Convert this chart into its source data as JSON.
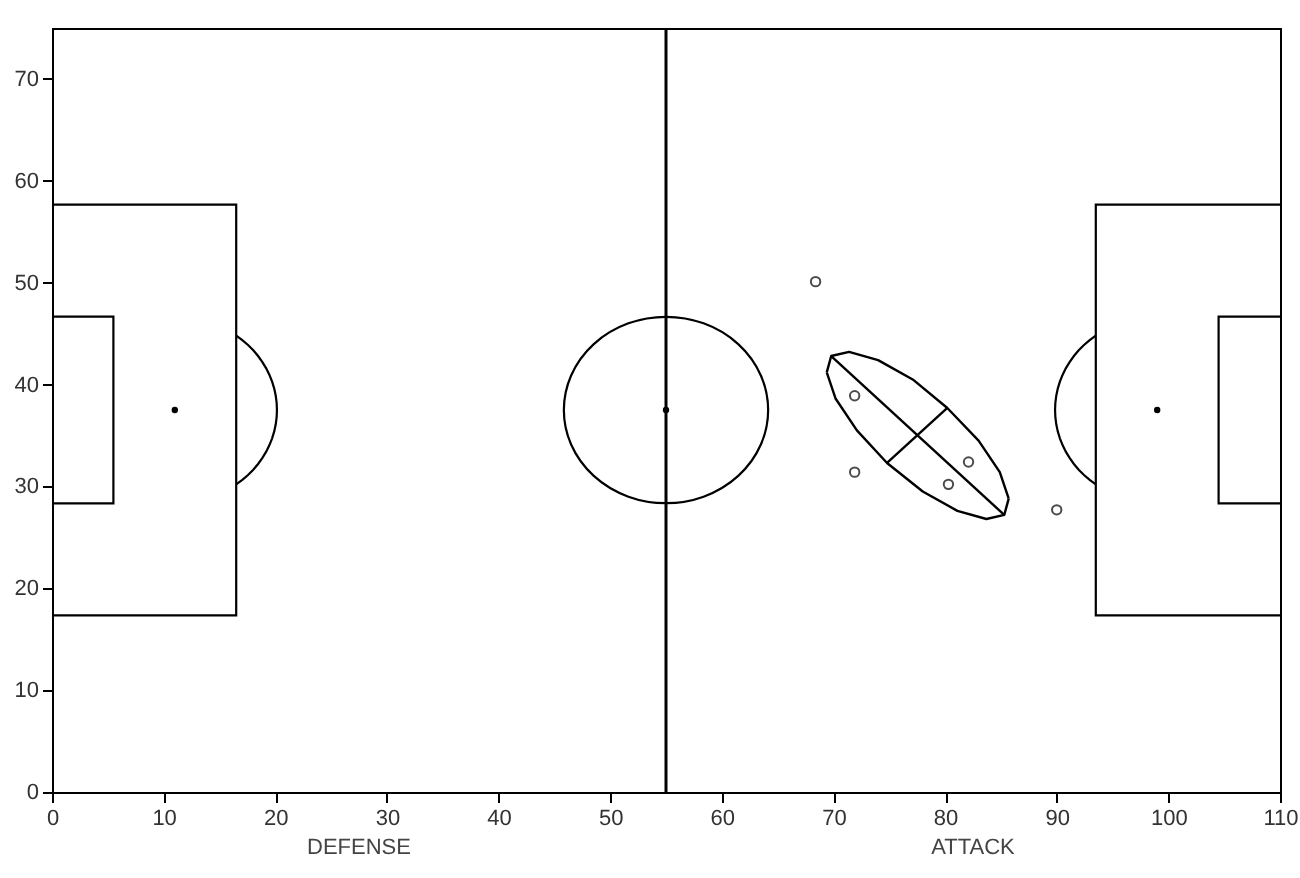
{
  "chart_data": {
    "type": "line",
    "xlim": [
      0,
      110
    ],
    "ylim": [
      0,
      75
    ],
    "xticks": [
      0,
      10,
      20,
      30,
      40,
      50,
      60,
      70,
      80,
      90,
      100,
      110
    ],
    "yticks": [
      0,
      10,
      20,
      30,
      40,
      50,
      60,
      70
    ],
    "annotations": [
      "DEFENSE",
      "ATTACK"
    ],
    "ref_lines": [
      {
        "axis": "x",
        "value": 55,
        "color": "#000000"
      }
    ],
    "series": [
      {
        "color": "#000000",
        "x": [
          69.4,
          69.8,
          71.4,
          74.0,
          77.1,
          80.2,
          83.0,
          84.9,
          85.7
        ],
        "values": [
          41.2,
          42.8,
          43.2,
          42.4,
          40.5,
          37.7,
          34.5,
          31.4,
          28.8
        ]
      },
      {
        "color": "#000000",
        "x": [
          69.4,
          70.2,
          72.1,
          74.8,
          78.0,
          81.1,
          83.7,
          85.3,
          85.7
        ],
        "values": [
          41.2,
          38.6,
          35.5,
          32.3,
          29.5,
          27.6,
          26.8,
          27.2,
          28.8
        ]
      },
      {
        "color": "#000000",
        "x": [
          69.8,
          85.3
        ],
        "values": [
          42.8,
          27.2
        ]
      },
      {
        "color": "#000000",
        "x": [
          74.8,
          80.2
        ],
        "values": [
          32.3,
          37.7
        ]
      },
      {
        "type": "scatter",
        "marker": "circle",
        "color": "#000000",
        "x": [
          68.4,
          71.9,
          71.9,
          80.3,
          82.1,
          90.0
        ],
        "values": [
          50.1,
          38.9,
          31.4,
          30.2,
          32.4,
          27.7
        ]
      }
    ]
  }
}
